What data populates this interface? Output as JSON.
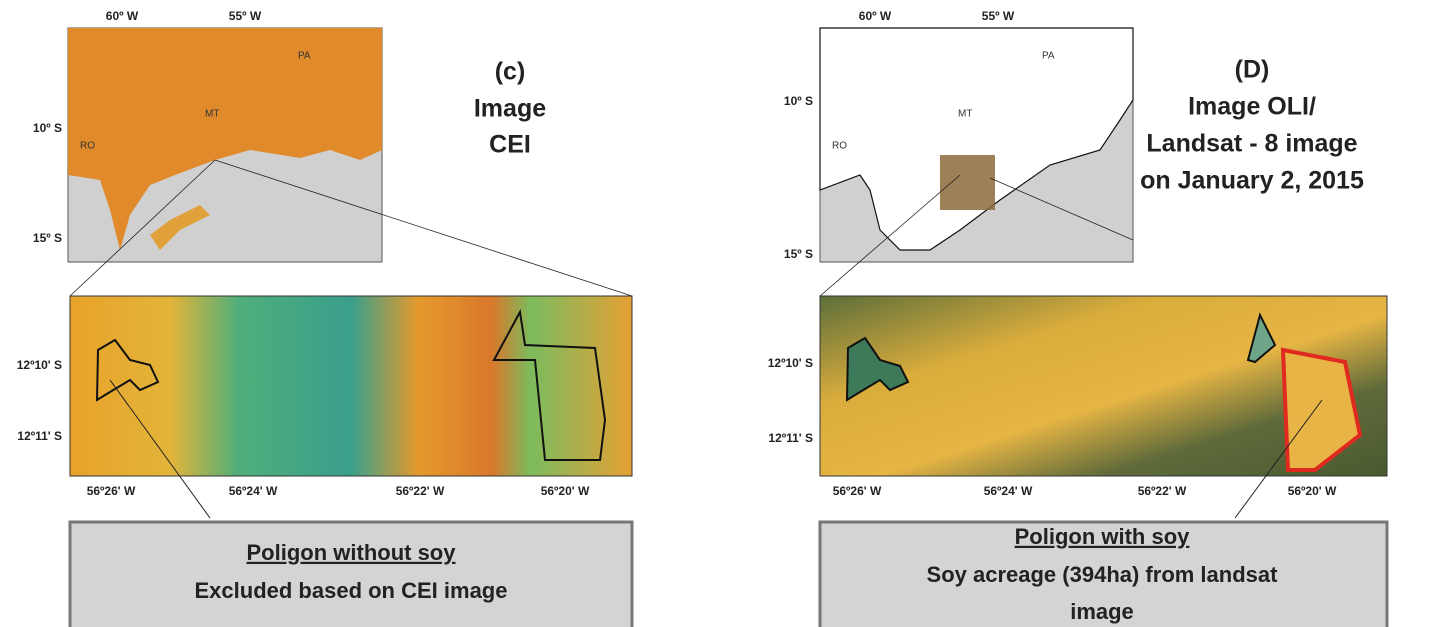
{
  "panels": [
    {
      "label": "(c)",
      "caption_lines": [
        "Image",
        "CEI"
      ],
      "overview": {
        "lon_labels": [
          "60º W",
          "55º W"
        ],
        "lat_labels": [
          "10º S",
          "15º S"
        ],
        "states": [
          "PA",
          "MT",
          "RO"
        ]
      },
      "detail": {
        "lat_labels": [
          "12º10' S",
          "12º11' S"
        ],
        "lon_labels": [
          "56º26' W",
          "56º24' W",
          "56º22' W",
          "56º20' W"
        ]
      },
      "callout": {
        "title": "Poligon without soy",
        "lines": [
          "Excluded based on CEI image"
        ]
      }
    },
    {
      "label": "(D)",
      "caption_lines": [
        "Image OLI/",
        "Landsat - 8 image",
        "on January 2, 2015"
      ],
      "overview": {
        "lon_labels": [
          "60º W",
          "55º W"
        ],
        "lat_labels": [
          "10º S",
          "15º S"
        ],
        "states": [
          "PA",
          "MT",
          "RO"
        ]
      },
      "detail": {
        "lat_labels": [
          "12º10' S",
          "12º11' S"
        ],
        "lon_labels": [
          "56º26' W",
          "56º24' W",
          "56º22' W",
          "56º20' W"
        ]
      },
      "callout": {
        "title": "Poligon with soy",
        "lines": [
          "Soy acreage (394ha) from landsat",
          "image"
        ]
      }
    }
  ]
}
